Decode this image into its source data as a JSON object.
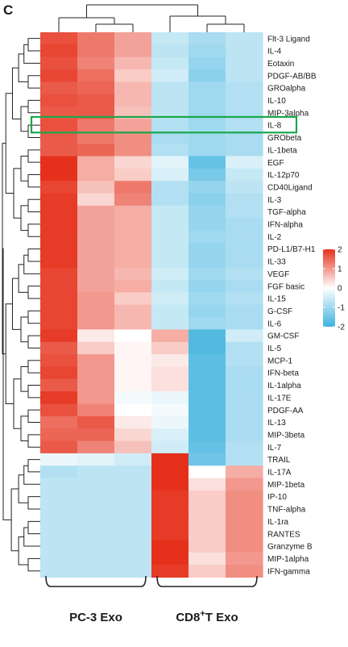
{
  "panel_label": "C",
  "chart_data": {
    "type": "heatmap",
    "rows": [
      "Flt-3 Ligand",
      "IL-4",
      "Eotaxin",
      "PDGF-AB/BB",
      "GROalpha",
      "IL-10",
      "MIP-3alpha",
      "IL-8",
      "GRObeta",
      "IL-1beta",
      "EGF",
      "IL-12p70",
      "CD40Ligand",
      "IL-3",
      "TGF-alpha",
      "IFN-alpha",
      "IL-2",
      "PD-L1/B7-H1",
      "IL-33",
      "VEGF",
      "FGF basic",
      "IL-15",
      "G-CSF",
      "IL-6",
      "GM-CSF",
      "IL-5",
      "MCP-1",
      "IFN-beta",
      "IL-1alpha",
      "IL-17E",
      "PDGF-AA",
      "IL-13",
      "MIP-3beta",
      "IL-7",
      "TRAIL",
      "IL-17A",
      "MIP-1beta",
      "IP-10",
      "TNF-alpha",
      "IL-1ra",
      "RANTES",
      "Granzyme B",
      "MIP-1alpha",
      "IFN-gamma"
    ],
    "groups": [
      {
        "label": "PC-3 Exo",
        "label_prefix": "PC-3 Exo",
        "label_sup": "",
        "label_suffix": "",
        "columns": 3
      },
      {
        "label": "CD8+T Exo",
        "label_prefix": "CD8",
        "label_sup": "+",
        "label_suffix": "T Exo",
        "columns": 3
      }
    ],
    "values": [
      [
        1.7,
        1.3,
        0.9,
        -0.6,
        -0.9,
        -0.7
      ],
      [
        1.8,
        1.3,
        0.9,
        -0.7,
        -1.0,
        -0.7
      ],
      [
        1.7,
        1.2,
        0.7,
        -0.6,
        -1.1,
        -0.7
      ],
      [
        1.8,
        1.4,
        0.5,
        -0.5,
        -1.2,
        -0.7
      ],
      [
        1.6,
        1.5,
        0.7,
        -0.7,
        -1.0,
        -0.8
      ],
      [
        1.7,
        1.6,
        0.7,
        -0.7,
        -1.0,
        -0.8
      ],
      [
        1.6,
        1.6,
        0.6,
        -0.7,
        -1.0,
        -0.8
      ],
      [
        1.7,
        1.3,
        0.9,
        -0.8,
        -1.0,
        -0.8
      ],
      [
        1.6,
        1.3,
        1.1,
        -0.9,
        -1.0,
        -0.9
      ],
      [
        1.6,
        1.5,
        1.1,
        -0.8,
        -1.0,
        -0.9
      ],
      [
        2.0,
        0.8,
        0.4,
        -0.3,
        -1.6,
        -0.4
      ],
      [
        2.0,
        0.8,
        0.5,
        -0.4,
        -1.4,
        -0.6
      ],
      [
        1.8,
        0.6,
        1.3,
        -0.8,
        -1.1,
        -0.7
      ],
      [
        1.9,
        0.4,
        1.2,
        -0.8,
        -1.2,
        -0.8
      ],
      [
        1.9,
        0.9,
        0.8,
        -0.6,
        -1.1,
        -0.8
      ],
      [
        1.9,
        0.9,
        0.8,
        -0.6,
        -1.1,
        -0.9
      ],
      [
        1.9,
        0.9,
        0.8,
        -0.6,
        -1.0,
        -0.9
      ],
      [
        1.9,
        0.9,
        0.8,
        -0.6,
        -1.1,
        -0.9
      ],
      [
        1.9,
        0.9,
        0.8,
        -0.6,
        -1.1,
        -0.9
      ],
      [
        1.8,
        0.9,
        0.7,
        -0.5,
        -1.0,
        -0.8
      ],
      [
        1.8,
        0.9,
        0.8,
        -0.6,
        -1.1,
        -0.9
      ],
      [
        1.8,
        1.0,
        0.5,
        -0.5,
        -1.0,
        -0.8
      ],
      [
        1.8,
        1.0,
        0.7,
        -0.6,
        -1.1,
        -0.9
      ],
      [
        1.8,
        1.0,
        0.7,
        -0.6,
        -1.0,
        -0.9
      ],
      [
        1.9,
        0.2,
        0.0,
        0.8,
        -1.8,
        -0.5
      ],
      [
        1.6,
        0.5,
        0.1,
        0.5,
        -1.8,
        -0.8
      ],
      [
        1.7,
        1.0,
        0.1,
        0.2,
        -1.7,
        -0.8
      ],
      [
        1.8,
        1.0,
        0.1,
        0.3,
        -1.7,
        -0.9
      ],
      [
        1.6,
        1.0,
        0.1,
        0.3,
        -1.7,
        -0.9
      ],
      [
        1.9,
        1.0,
        -0.1,
        -0.2,
        -1.7,
        -0.9
      ],
      [
        1.7,
        1.2,
        0.0,
        -0.1,
        -1.7,
        -0.9
      ],
      [
        1.4,
        1.6,
        0.2,
        -0.2,
        -1.7,
        -0.9
      ],
      [
        1.5,
        1.5,
        0.4,
        -0.4,
        -1.7,
        -0.9
      ],
      [
        1.6,
        1.2,
        0.6,
        -0.5,
        -1.6,
        -0.8
      ],
      [
        -0.2,
        -0.3,
        -0.5,
        2.0,
        -1.5,
        -0.8
      ],
      [
        -0.8,
        -0.7,
        -0.7,
        2.0,
        0.0,
        0.8
      ],
      [
        -0.7,
        -0.7,
        -0.7,
        2.0,
        0.3,
        1.0
      ],
      [
        -0.7,
        -0.7,
        -0.7,
        1.9,
        0.5,
        1.1
      ],
      [
        -0.7,
        -0.7,
        -0.7,
        1.9,
        0.5,
        1.1
      ],
      [
        -0.7,
        -0.7,
        -0.7,
        1.9,
        0.5,
        1.1
      ],
      [
        -0.7,
        -0.7,
        -0.7,
        1.9,
        0.5,
        1.1
      ],
      [
        -0.7,
        -0.7,
        -0.7,
        2.0,
        0.5,
        1.1
      ],
      [
        -0.7,
        -0.7,
        -0.7,
        2.0,
        0.3,
        1.0
      ],
      [
        -0.7,
        -0.7,
        -0.7,
        1.9,
        0.5,
        1.1
      ]
    ],
    "scale": {
      "min": -2,
      "max": 2,
      "ticks": [
        2,
        1,
        0,
        -1,
        -2
      ],
      "low_color": "#3fb2de",
      "mid_color": "#ffffff",
      "high_color": "#e5311c"
    },
    "highlighted_row": "IL-8",
    "highlight_color": "#1aa74a",
    "dendrograms": {
      "rows": true,
      "columns": true
    },
    "title": "",
    "xlabel": "",
    "ylabel": "",
    "grid": false,
    "legend": "right"
  }
}
